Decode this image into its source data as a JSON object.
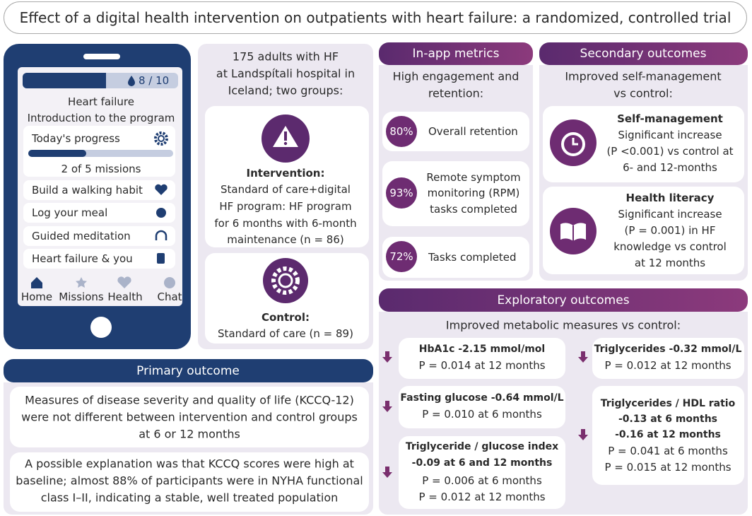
{
  "title": "Effect of a digital health intervention on outpatients with heart failure: a randomized, controlled trial",
  "phone": {
    "progress": "8 / 10",
    "heading": "Heart failure",
    "subheading": "Introduction to the program",
    "progress_card": {
      "label": "Today's progress",
      "missions": "2 of 5 missions"
    },
    "menu": [
      "Build a walking habit",
      "Log your meal",
      "Guided meditation",
      "Heart failure & you"
    ],
    "nav": [
      "Home",
      "Missions",
      "Health",
      "Chat"
    ]
  },
  "study": {
    "intro": [
      "175 adults with HF",
      "at Landspítali hospital in",
      "Iceland; two groups:"
    ],
    "intervention": {
      "label": "Intervention:",
      "lines": [
        "Standard of care+digital",
        "HF program: HF program",
        "for 6 months with 6-month",
        "maintenance (n = 86)"
      ]
    },
    "control": {
      "label": "Control:",
      "lines": [
        "Standard of care (n = 89)"
      ]
    }
  },
  "primary": {
    "header": "Primary outcome",
    "findings": [
      [
        "Measures of disease severity and quality of life (KCCQ-12)",
        "were not different between intervention and control groups",
        "at 6 or 12 months"
      ],
      [
        "A possible explanation was that KCCQ scores were high at",
        "baseline; almost 88% of participants were in NYHA functional",
        "class I–II, indicating a stable, well treated population"
      ]
    ]
  },
  "in_app": {
    "header": "In-app metrics",
    "subtitle": [
      "High engagement and",
      "retention:"
    ],
    "metrics": [
      {
        "value": "80%",
        "label": [
          "Overall retention"
        ]
      },
      {
        "value": "93%",
        "label": [
          "Remote symptom",
          "monitoring (RPM)",
          "tasks completed"
        ]
      },
      {
        "value": "72%",
        "label": [
          "Tasks completed"
        ]
      }
    ]
  },
  "secondary": {
    "header": "Secondary outcomes",
    "subtitle": [
      "Improved self-management",
      "vs control:"
    ],
    "items": [
      {
        "title": "Self-management",
        "lines": [
          "Significant increase",
          "(P <0.001) vs control at",
          "6- and 12-months"
        ]
      },
      {
        "title": "Health literacy",
        "lines": [
          "Significant increase",
          "(P = 0.001) in HF",
          "knowledge vs control",
          "at 12 months"
        ]
      }
    ]
  },
  "exploratory": {
    "header": "Exploratory outcomes",
    "subtitle": "Improved metabolic measures vs control:",
    "items": [
      {
        "title": [
          "HbA1c -2.15 mmol/mol"
        ],
        "details": [
          "P = 0.014 at 12 months"
        ]
      },
      {
        "title": [
          "Fasting glucose -0.64 mmol/L"
        ],
        "details": [
          "P = 0.010 at 6 months"
        ]
      },
      {
        "title": [
          "Triglyceride / glucose index",
          "-0.09 at 6 and 12 months"
        ],
        "details": [
          "P = 0.006 at 6 months",
          "P = 0.012 at 12 months"
        ]
      },
      {
        "title": [
          "Triglycerides -0.32 mmol/L"
        ],
        "details": [
          "P = 0.012 at 12 months"
        ]
      },
      {
        "title": [
          "Triglycerides / HDL ratio",
          "-0.13 at 6 months",
          "-0.16 at 12 months"
        ],
        "details": [
          "P = 0.041 at 6 months",
          "P = 0.015 at 12 months"
        ]
      }
    ]
  }
}
